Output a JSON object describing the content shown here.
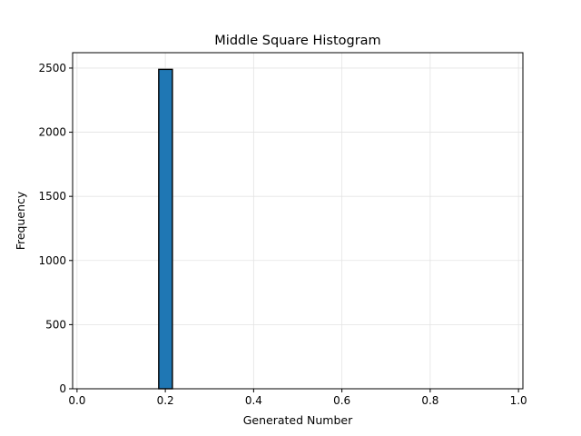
{
  "chart_data": {
    "type": "bar",
    "title": "Middle Square Histogram",
    "xlabel": "Generated Number",
    "ylabel": "Frequency",
    "xlim": [
      -0.01,
      1.01
    ],
    "ylim": [
      0,
      2620
    ],
    "xticks": [
      0.0,
      0.2,
      0.4,
      0.6,
      0.8,
      1.0
    ],
    "xtick_labels": [
      "0.0",
      "0.2",
      "0.4",
      "0.6",
      "0.8",
      "1.0"
    ],
    "yticks": [
      0,
      500,
      1000,
      1500,
      2000,
      2500
    ],
    "ytick_labels": [
      "0",
      "500",
      "1000",
      "1500",
      "2000",
      "2500"
    ],
    "grid": true,
    "bin_start": 0.03,
    "bin_width": 0.031,
    "values": [
      0,
      0,
      0,
      0,
      0,
      2490,
      0,
      0,
      0,
      0,
      0,
      0,
      0,
      0,
      0,
      0,
      0,
      0,
      0,
      0,
      0,
      0,
      0,
      0,
      0,
      0,
      0,
      0,
      0,
      0
    ],
    "bar_color": "#1f77b4",
    "edge_color": "#000000"
  }
}
